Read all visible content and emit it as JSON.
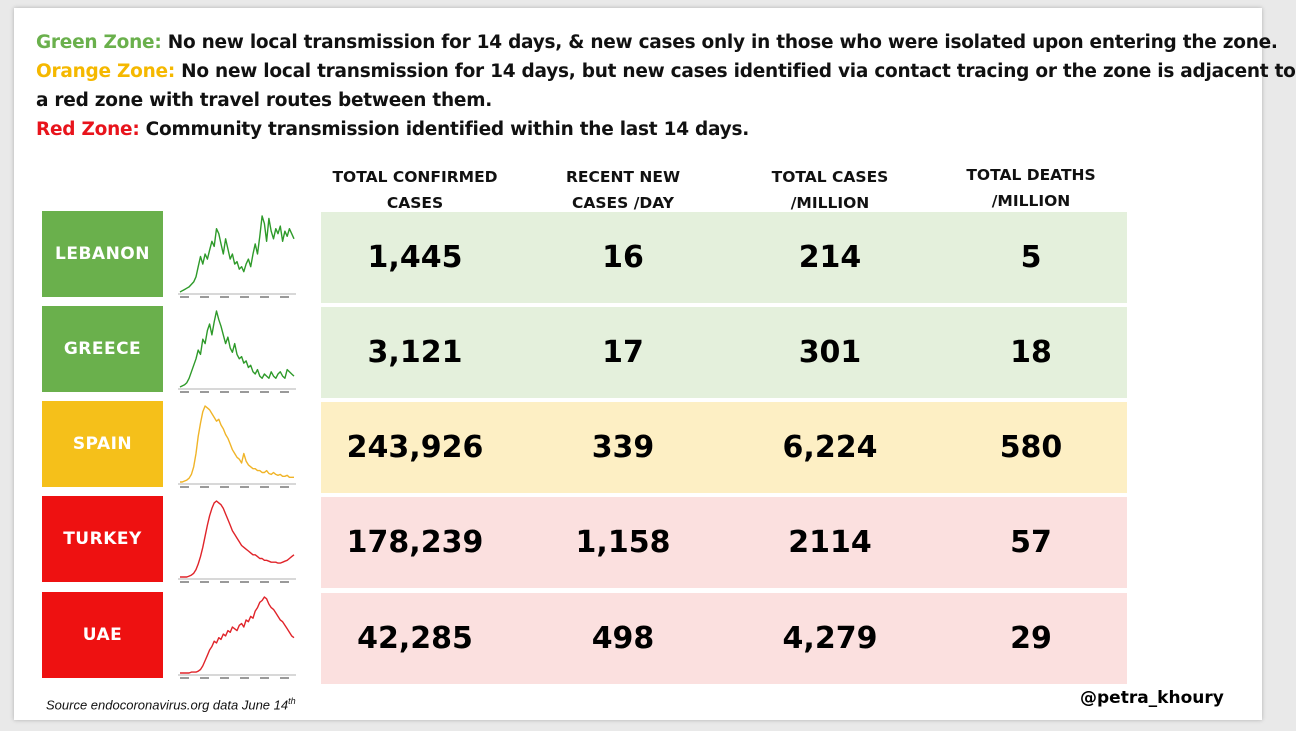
{
  "legend": [
    {
      "zone": "Green Zone:",
      "text": " No new local transmission for 14 days, & new cases only in those who were isolated upon entering the zone.",
      "color": "#6ab04c"
    },
    {
      "zone": "Orange Zone:",
      "text": " No new local transmission for 14 days, but new cases identified via contact tracing or the zone is adjacent to",
      "text2": "a red zone with travel routes between them.",
      "color": "#f5b800"
    },
    {
      "zone": "Red Zone:",
      "text": " Community transmission identified within the last 14 days.",
      "color": "#e8141c"
    }
  ],
  "colors": {
    "green": "#6ab04c",
    "orange": "#f5c01a",
    "red": "#ee1111",
    "green_bg": "#e4f0dc",
    "orange_bg": "#fdefc4",
    "red_bg": "#fbe0df",
    "green_line": "#2e9a2a",
    "orange_line": "#f0b428",
    "red_line": "#e0242a"
  },
  "chart_data": {
    "type": "table",
    "columns": [
      "TOTAL CONFIRMED CASES",
      "RECENT NEW CASES /DAY",
      "TOTAL CASES /MILLION",
      "TOTAL DEATHS /MILLION"
    ],
    "header_lines": [
      [
        "TOTAL CONFIRMED",
        "CASES"
      ],
      [
        "RECENT NEW",
        "CASES /DAY"
      ],
      [
        "TOTAL CASES",
        "/MILLION"
      ],
      [
        "TOTAL DEATHS",
        "/MILLION"
      ]
    ],
    "rows": [
      {
        "country": "LEBANON",
        "zone": "green",
        "values": [
          "1,445",
          "16",
          "214",
          "5"
        ],
        "trend": [
          0,
          1,
          2,
          3,
          4,
          6,
          8,
          12,
          20,
          28,
          22,
          30,
          26,
          33,
          40,
          36,
          50,
          46,
          38,
          30,
          42,
          34,
          26,
          30,
          22,
          24,
          18,
          20,
          16,
          22,
          26,
          20,
          30,
          38,
          30,
          44,
          60,
          54,
          40,
          58,
          48,
          42,
          50,
          46,
          52,
          40,
          48,
          44,
          50,
          46,
          42
        ]
      },
      {
        "country": "GREECE",
        "zone": "green",
        "values": [
          "3,121",
          "17",
          "301",
          "18"
        ],
        "trend": [
          0,
          1,
          2,
          4,
          8,
          14,
          20,
          26,
          34,
          30,
          44,
          40,
          52,
          58,
          48,
          60,
          70,
          62,
          56,
          48,
          40,
          46,
          36,
          32,
          40,
          30,
          26,
          28,
          22,
          24,
          18,
          20,
          14,
          12,
          16,
          10,
          8,
          12,
          10,
          8,
          14,
          10,
          8,
          12,
          14,
          10,
          8,
          16,
          14,
          12,
          10
        ]
      },
      {
        "country": "SPAIN",
        "zone": "orange",
        "values": [
          "243,926",
          "339",
          "6,224",
          "580"
        ],
        "trend": [
          0,
          0,
          1,
          2,
          4,
          8,
          16,
          30,
          48,
          62,
          74,
          80,
          78,
          76,
          72,
          68,
          64,
          66,
          60,
          56,
          50,
          46,
          40,
          34,
          30,
          26,
          24,
          20,
          30,
          22,
          18,
          16,
          14,
          14,
          12,
          12,
          10,
          10,
          12,
          9,
          8,
          10,
          8,
          7,
          8,
          6,
          6,
          7,
          5,
          5,
          5
        ]
      },
      {
        "country": "TURKEY",
        "zone": "red",
        "values": [
          "178,239",
          "1,158",
          "2114",
          "57"
        ],
        "trend": [
          0,
          0,
          0,
          0,
          1,
          2,
          4,
          8,
          14,
          22,
          32,
          44,
          56,
          66,
          74,
          80,
          82,
          80,
          78,
          74,
          68,
          62,
          56,
          50,
          46,
          42,
          38,
          34,
          32,
          30,
          28,
          26,
          24,
          24,
          22,
          20,
          20,
          18,
          18,
          17,
          16,
          16,
          16,
          15,
          15,
          16,
          17,
          18,
          20,
          22,
          24
        ]
      },
      {
        "country": "UAE",
        "zone": "red",
        "values": [
          "42,285",
          "498",
          "4,279",
          "29"
        ],
        "trend": [
          0,
          0,
          0,
          0,
          0,
          1,
          1,
          1,
          2,
          4,
          8,
          14,
          20,
          26,
          30,
          36,
          34,
          40,
          38,
          44,
          42,
          48,
          46,
          52,
          50,
          48,
          54,
          56,
          52,
          60,
          58,
          64,
          62,
          70,
          74,
          80,
          82,
          86,
          84,
          78,
          74,
          72,
          68,
          64,
          60,
          58,
          54,
          50,
          46,
          42,
          40
        ]
      }
    ]
  },
  "footer": {
    "source": "Source endocoronavirus.org data June 14",
    "source_sup": "th",
    "handle": "@petra_khoury"
  }
}
